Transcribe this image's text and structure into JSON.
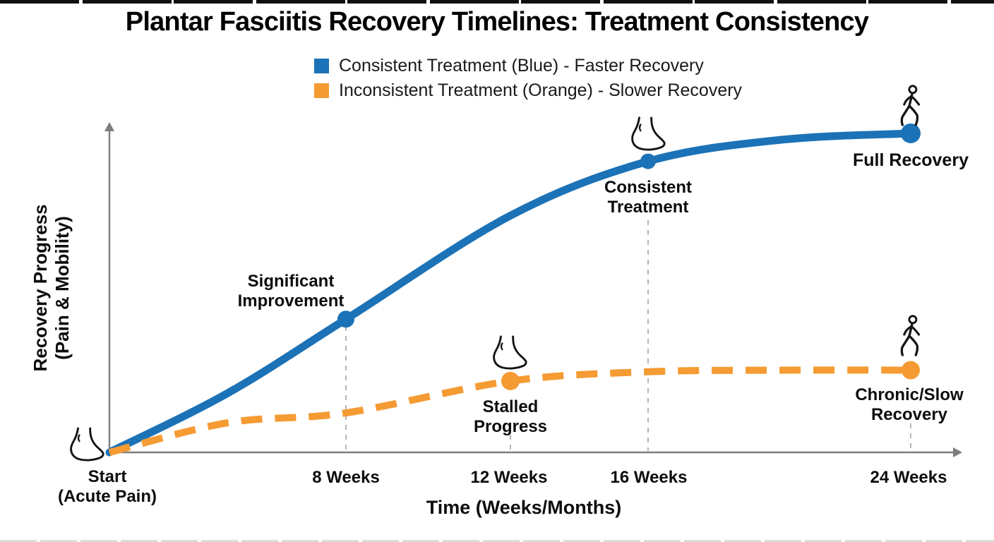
{
  "page": {
    "title": "Plantar Fasciitis Recovery Timelines: Treatment Consistency"
  },
  "colors": {
    "consistent_blue": "#1C72B6",
    "inconsistent_orange": "#F59B33",
    "text": "#0d0d0d",
    "axis_gray": "#7d7d7d",
    "grid_gray": "#b5b5b5"
  },
  "legend": {
    "items": [
      {
        "label": "Consistent Treatment (Blue) - Faster Recovery",
        "color": "#1C72B6"
      },
      {
        "label": "Inconsistent Treatment (Orange) - Slower Recovery",
        "color": "#F59B33"
      }
    ]
  },
  "axes": {
    "x_label": "Time (Weeks/Months)",
    "y_label": "Recovery Progress\n(Pain & Mobility)",
    "x_tick_labels": [
      "Start\n(Acute Pain)",
      "8 Weeks",
      "12 Weeks",
      "16 Weeks",
      "24 Weeks"
    ]
  },
  "annotations": {
    "significant_improvement": "Significant\nImprovement",
    "consistent_treatment": "Consistent\nTreatment",
    "full_recovery": "Full Recovery",
    "stalled_progress": "Stalled\nProgress",
    "chronic_slow_recovery": "Chronic/Slow\nRecovery"
  },
  "icons": [
    "foot-icon",
    "walking-person-icon"
  ],
  "chart_data": {
    "type": "line",
    "title": "Plantar Fasciitis Recovery Timelines: Treatment Consistency",
    "xlabel": "Time (Weeks/Months)",
    "ylabel": "Recovery Progress (Pain & Mobility)",
    "x_unit": "weeks",
    "x_tick_weeks": [
      0,
      8,
      12,
      16,
      24
    ],
    "x_tick_labels": [
      "Start (Acute Pain)",
      "8 Weeks",
      "12 Weeks",
      "16 Weeks",
      "24 Weeks"
    ],
    "ylim": [
      0,
      100
    ],
    "grid": "vertical dashed gridlines at milestone weeks only",
    "legend_position": "top-center",
    "series": [
      {
        "name": "Consistent Treatment (Blue) - Faster Recovery",
        "color": "#1C72B6",
        "line_style": "solid",
        "x": [
          0,
          4,
          8,
          12,
          16,
          20,
          24
        ],
        "values": [
          0,
          18,
          40.5,
          72,
          88.5,
          95,
          97
        ],
        "milestones": [
          {
            "week": 8,
            "value": 40.5,
            "label": "Significant Improvement"
          },
          {
            "week": 16,
            "value": 88.5,
            "label": "Consistent Treatment"
          },
          {
            "week": 24,
            "value": 97,
            "label": "Full Recovery"
          }
        ]
      },
      {
        "name": "Inconsistent Treatment (Orange) - Slower Recovery",
        "color": "#F59B33",
        "line_style": "dashed",
        "x": [
          0,
          4,
          8,
          12,
          16,
          20,
          24
        ],
        "values": [
          0,
          9,
          12,
          21.7,
          24.5,
          25,
          25
        ],
        "milestones": [
          {
            "week": 12,
            "value": 21.7,
            "label": "Stalled Progress"
          },
          {
            "week": 24,
            "value": 25,
            "label": "Chronic/Slow Recovery"
          }
        ]
      }
    ]
  }
}
